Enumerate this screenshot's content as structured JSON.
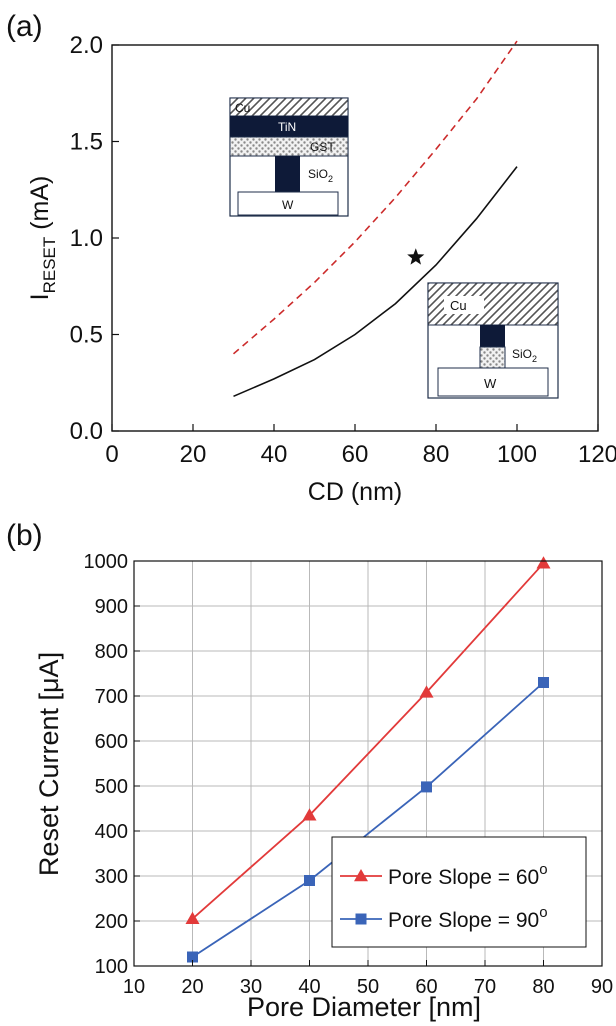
{
  "chart_data": [
    {
      "panel_label": "(a)",
      "type": "line",
      "xlabel": "CD (nm)",
      "ylabel_main": "I",
      "ylabel_sub": "RESET",
      "ylabel_unit": " (mA)",
      "xlim": [
        0,
        120
      ],
      "ylim": [
        0.0,
        2.0
      ],
      "x_ticks": [
        "0",
        "20",
        "40",
        "60",
        "80",
        "100",
        "120"
      ],
      "y_ticks": [
        "0.0",
        "0.5",
        "1.0",
        "1.5",
        "2.0"
      ],
      "grid": false,
      "series": [
        {
          "style": "dashed",
          "color": "#cc2b2b",
          "x": [
            30,
            40,
            50,
            60,
            70,
            80,
            90,
            100
          ],
          "y": [
            0.4,
            0.58,
            0.77,
            0.98,
            1.21,
            1.46,
            1.72,
            2.02
          ]
        },
        {
          "style": "solid",
          "color": "#111111",
          "x": [
            30,
            40,
            50,
            60,
            70,
            80,
            90,
            100
          ],
          "y": [
            0.18,
            0.27,
            0.37,
            0.5,
            0.66,
            0.86,
            1.1,
            1.37
          ]
        }
      ],
      "annotations": [
        {
          "type": "star-marker",
          "x": 75,
          "y": 0.9
        }
      ],
      "insets": [
        {
          "name": "confined-cell",
          "labels": {
            "cu": "Cu",
            "tin": "TiN",
            "gst": "GST",
            "oxide_main": "SiO",
            "oxide_sub": "2",
            "electrode": "W"
          }
        },
        {
          "name": "pore-cell",
          "labels": {
            "cu": "Cu",
            "oxide_main": "SiO",
            "oxide_sub": "2",
            "electrode": "W"
          }
        }
      ]
    },
    {
      "panel_label": "(b)",
      "type": "line",
      "xlabel": "Pore Diameter [nm]",
      "ylabel": "Reset Current [μA]",
      "xlim": [
        10,
        90
      ],
      "ylim": [
        100,
        1000
      ],
      "x_ticks": [
        "10",
        "20",
        "30",
        "40",
        "50",
        "60",
        "70",
        "80",
        "90"
      ],
      "y_ticks": [
        "100",
        "200",
        "300",
        "400",
        "500",
        "600",
        "700",
        "800",
        "900",
        "1000"
      ],
      "grid": true,
      "legend_position": "bottom-right",
      "series": [
        {
          "name": "Pore Slope = 60",
          "name_sup": "o",
          "marker": "triangle",
          "color": "#e23a3a",
          "x": [
            20,
            40,
            60,
            80
          ],
          "y": [
            205,
            435,
            708,
            995
          ]
        },
        {
          "name": "Pore Slope = 90",
          "name_sup": "o",
          "marker": "square",
          "color": "#3a64b8",
          "x": [
            20,
            40,
            60,
            80
          ],
          "y": [
            120,
            290,
            498,
            730
          ]
        }
      ]
    }
  ]
}
